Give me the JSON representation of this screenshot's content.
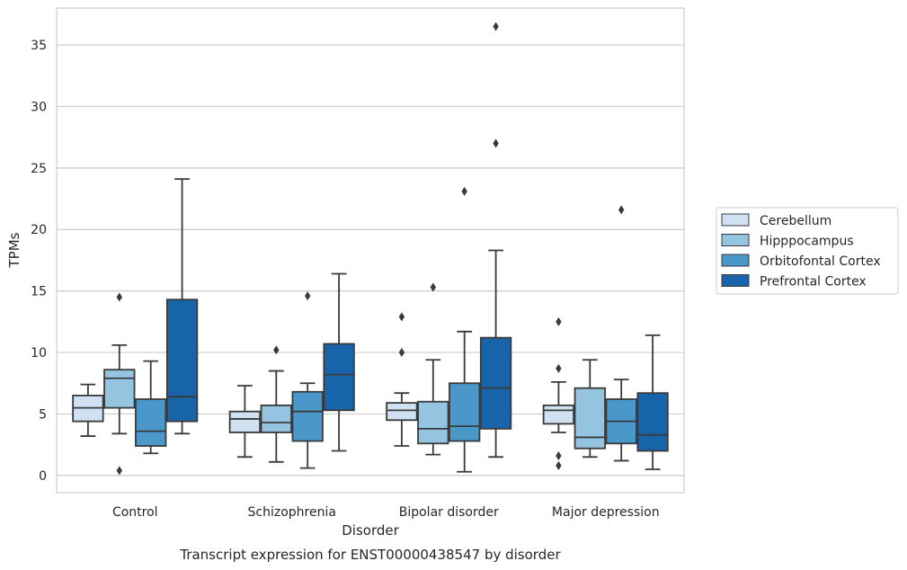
{
  "caption": "Transcript expression for ENST00000438547 by disorder",
  "colors": {
    "Cerebellum": "#d0e1f2",
    "Hipppocampus": "#94c4df",
    "Orbitofontal Cortex": "#4a98c9",
    "Prefrontal Cortex": "#1764ab",
    "box_edge": "#3a3a3a",
    "grid": "#cccccc",
    "axes_edge": "#cccccc"
  },
  "chart_data": {
    "type": "boxplot",
    "xlabel": "Disorder",
    "ylabel": "TPMs",
    "ylim": [
      -1.4,
      38
    ],
    "yticks": [
      0,
      5,
      10,
      15,
      20,
      25,
      30,
      35
    ],
    "grid": "horizontal",
    "legend_position": "right",
    "categories": [
      "Control",
      "Schizophrenia",
      "Bipolar disorder",
      "Major depression"
    ],
    "series": [
      {
        "name": "Cerebellum",
        "boxes": [
          {
            "whislo": 3.2,
            "q1": 4.4,
            "med": 5.5,
            "q3": 6.5,
            "whishi": 7.4,
            "fliers": []
          },
          {
            "whislo": 1.5,
            "q1": 3.5,
            "med": 4.6,
            "q3": 5.2,
            "whishi": 7.3,
            "fliers": []
          },
          {
            "whislo": 2.4,
            "q1": 4.5,
            "med": 5.3,
            "q3": 5.9,
            "whishi": 6.7,
            "fliers": [
              10.0,
              12.9
            ]
          },
          {
            "whislo": 3.5,
            "q1": 4.2,
            "med": 5.3,
            "q3": 5.7,
            "whishi": 7.6,
            "fliers": [
              0.8,
              1.6,
              8.7,
              12.5
            ]
          }
        ]
      },
      {
        "name": "Hipppocampus",
        "boxes": [
          {
            "whislo": 3.4,
            "q1": 5.5,
            "med": 7.9,
            "q3": 8.6,
            "whishi": 10.6,
            "fliers": [
              0.4,
              14.5
            ]
          },
          {
            "whislo": 1.1,
            "q1": 3.5,
            "med": 4.3,
            "q3": 5.7,
            "whishi": 8.5,
            "fliers": [
              10.2
            ]
          },
          {
            "whislo": 1.7,
            "q1": 2.6,
            "med": 3.8,
            "q3": 6.0,
            "whishi": 9.4,
            "fliers": [
              15.3
            ]
          },
          {
            "whislo": 1.5,
            "q1": 2.2,
            "med": 3.1,
            "q3": 7.1,
            "whishi": 9.4,
            "fliers": []
          }
        ]
      },
      {
        "name": "Orbitofontal Cortex",
        "boxes": [
          {
            "whislo": 1.8,
            "q1": 2.4,
            "med": 3.6,
            "q3": 6.2,
            "whishi": 9.3,
            "fliers": []
          },
          {
            "whislo": 0.6,
            "q1": 2.8,
            "med": 5.2,
            "q3": 6.8,
            "whishi": 7.5,
            "fliers": [
              14.6
            ]
          },
          {
            "whislo": 0.3,
            "q1": 2.8,
            "med": 4.0,
            "q3": 7.5,
            "whishi": 11.7,
            "fliers": [
              23.1
            ]
          },
          {
            "whislo": 1.2,
            "q1": 2.6,
            "med": 4.4,
            "q3": 6.2,
            "whishi": 7.8,
            "fliers": [
              21.6
            ]
          }
        ]
      },
      {
        "name": "Prefrontal Cortex",
        "boxes": [
          {
            "whislo": 3.4,
            "q1": 4.4,
            "med": 6.4,
            "q3": 14.3,
            "whishi": 24.1,
            "fliers": []
          },
          {
            "whislo": 2.0,
            "q1": 5.3,
            "med": 8.2,
            "q3": 10.7,
            "whishi": 16.4,
            "fliers": []
          },
          {
            "whislo": 1.5,
            "q1": 3.8,
            "med": 7.1,
            "q3": 11.2,
            "whishi": 18.3,
            "fliers": [
              27.0,
              36.5
            ]
          },
          {
            "whislo": 0.5,
            "q1": 2.0,
            "med": 3.3,
            "q3": 6.7,
            "whishi": 11.4,
            "fliers": []
          }
        ]
      }
    ]
  }
}
